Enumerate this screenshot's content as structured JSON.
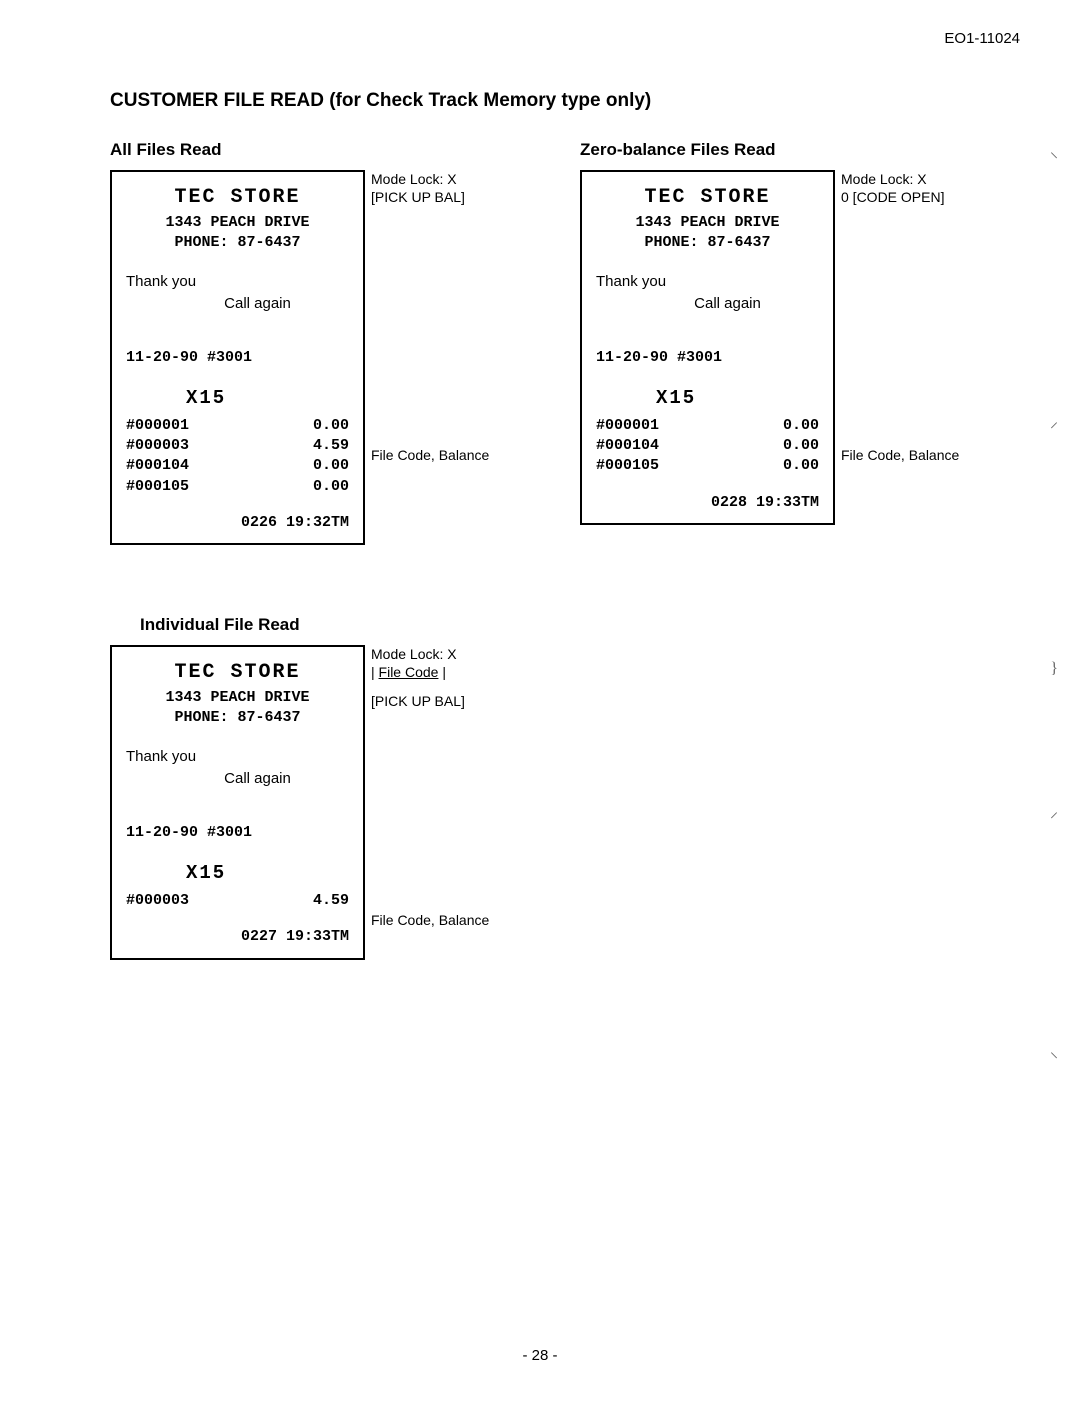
{
  "doc_code": "EO1-11024",
  "main_title": "CUSTOMER FILE READ (for Check Track Memory type only)",
  "page_num": "- 28 -",
  "sections": {
    "all_files": {
      "title": "All Files Read",
      "annot_mode": "Mode Lock:  X",
      "annot_op": "[PICK UP BAL]",
      "annot_mid": "File Code, Balance",
      "receipt": {
        "store": "TEC  STORE",
        "addr": "1343 PEACH DRIVE",
        "phone": "PHONE: 87-6437",
        "thank": "Thank you",
        "call": "Call again",
        "date": "11-20-90   #3001",
        "x": "X15",
        "lines": [
          {
            "code": "#000001",
            "bal": "0.00"
          },
          {
            "code": "#000003",
            "bal": "4.59"
          },
          {
            "code": "#000104",
            "bal": "0.00"
          },
          {
            "code": "#000105",
            "bal": "0.00"
          }
        ],
        "footer": "0226 19:32TM"
      }
    },
    "zero_bal": {
      "title": "Zero-balance Files Read",
      "annot_mode": "Mode Lock:  X",
      "annot_op": "0 [CODE OPEN]",
      "annot_mid": "File Code, Balance",
      "receipt": {
        "store": "TEC  STORE",
        "addr": "1343 PEACH DRIVE",
        "phone": "PHONE: 87-6437",
        "thank": "Thank you",
        "call": "Call again",
        "date": "11-20-90   #3001",
        "x": "X15",
        "lines": [
          {
            "code": "#000001",
            "bal": "0.00"
          },
          {
            "code": "#000104",
            "bal": "0.00"
          },
          {
            "code": "#000105",
            "bal": "0.00"
          }
        ],
        "footer": "0228 19:33TM"
      }
    },
    "individual": {
      "title": "Individual File Read",
      "annot_mode": "Mode Lock:  X",
      "annot_filecode": "File Code",
      "annot_op": "[PICK UP BAL]",
      "annot_mid": "File Code, Balance",
      "receipt": {
        "store": "TEC  STORE",
        "addr": "1343 PEACH DRIVE",
        "phone": "PHONE: 87-6437",
        "thank": "Thank you",
        "call": "Call again",
        "date": "11-20-90   #3001",
        "x": "X15",
        "lines": [
          {
            "code": "#000003",
            "bal": "4.59"
          }
        ],
        "footer": "0227 19:33TM"
      }
    }
  },
  "punch_marks": [
    "⸜",
    "⸝",
    "}",
    "⸝",
    "⸜"
  ]
}
